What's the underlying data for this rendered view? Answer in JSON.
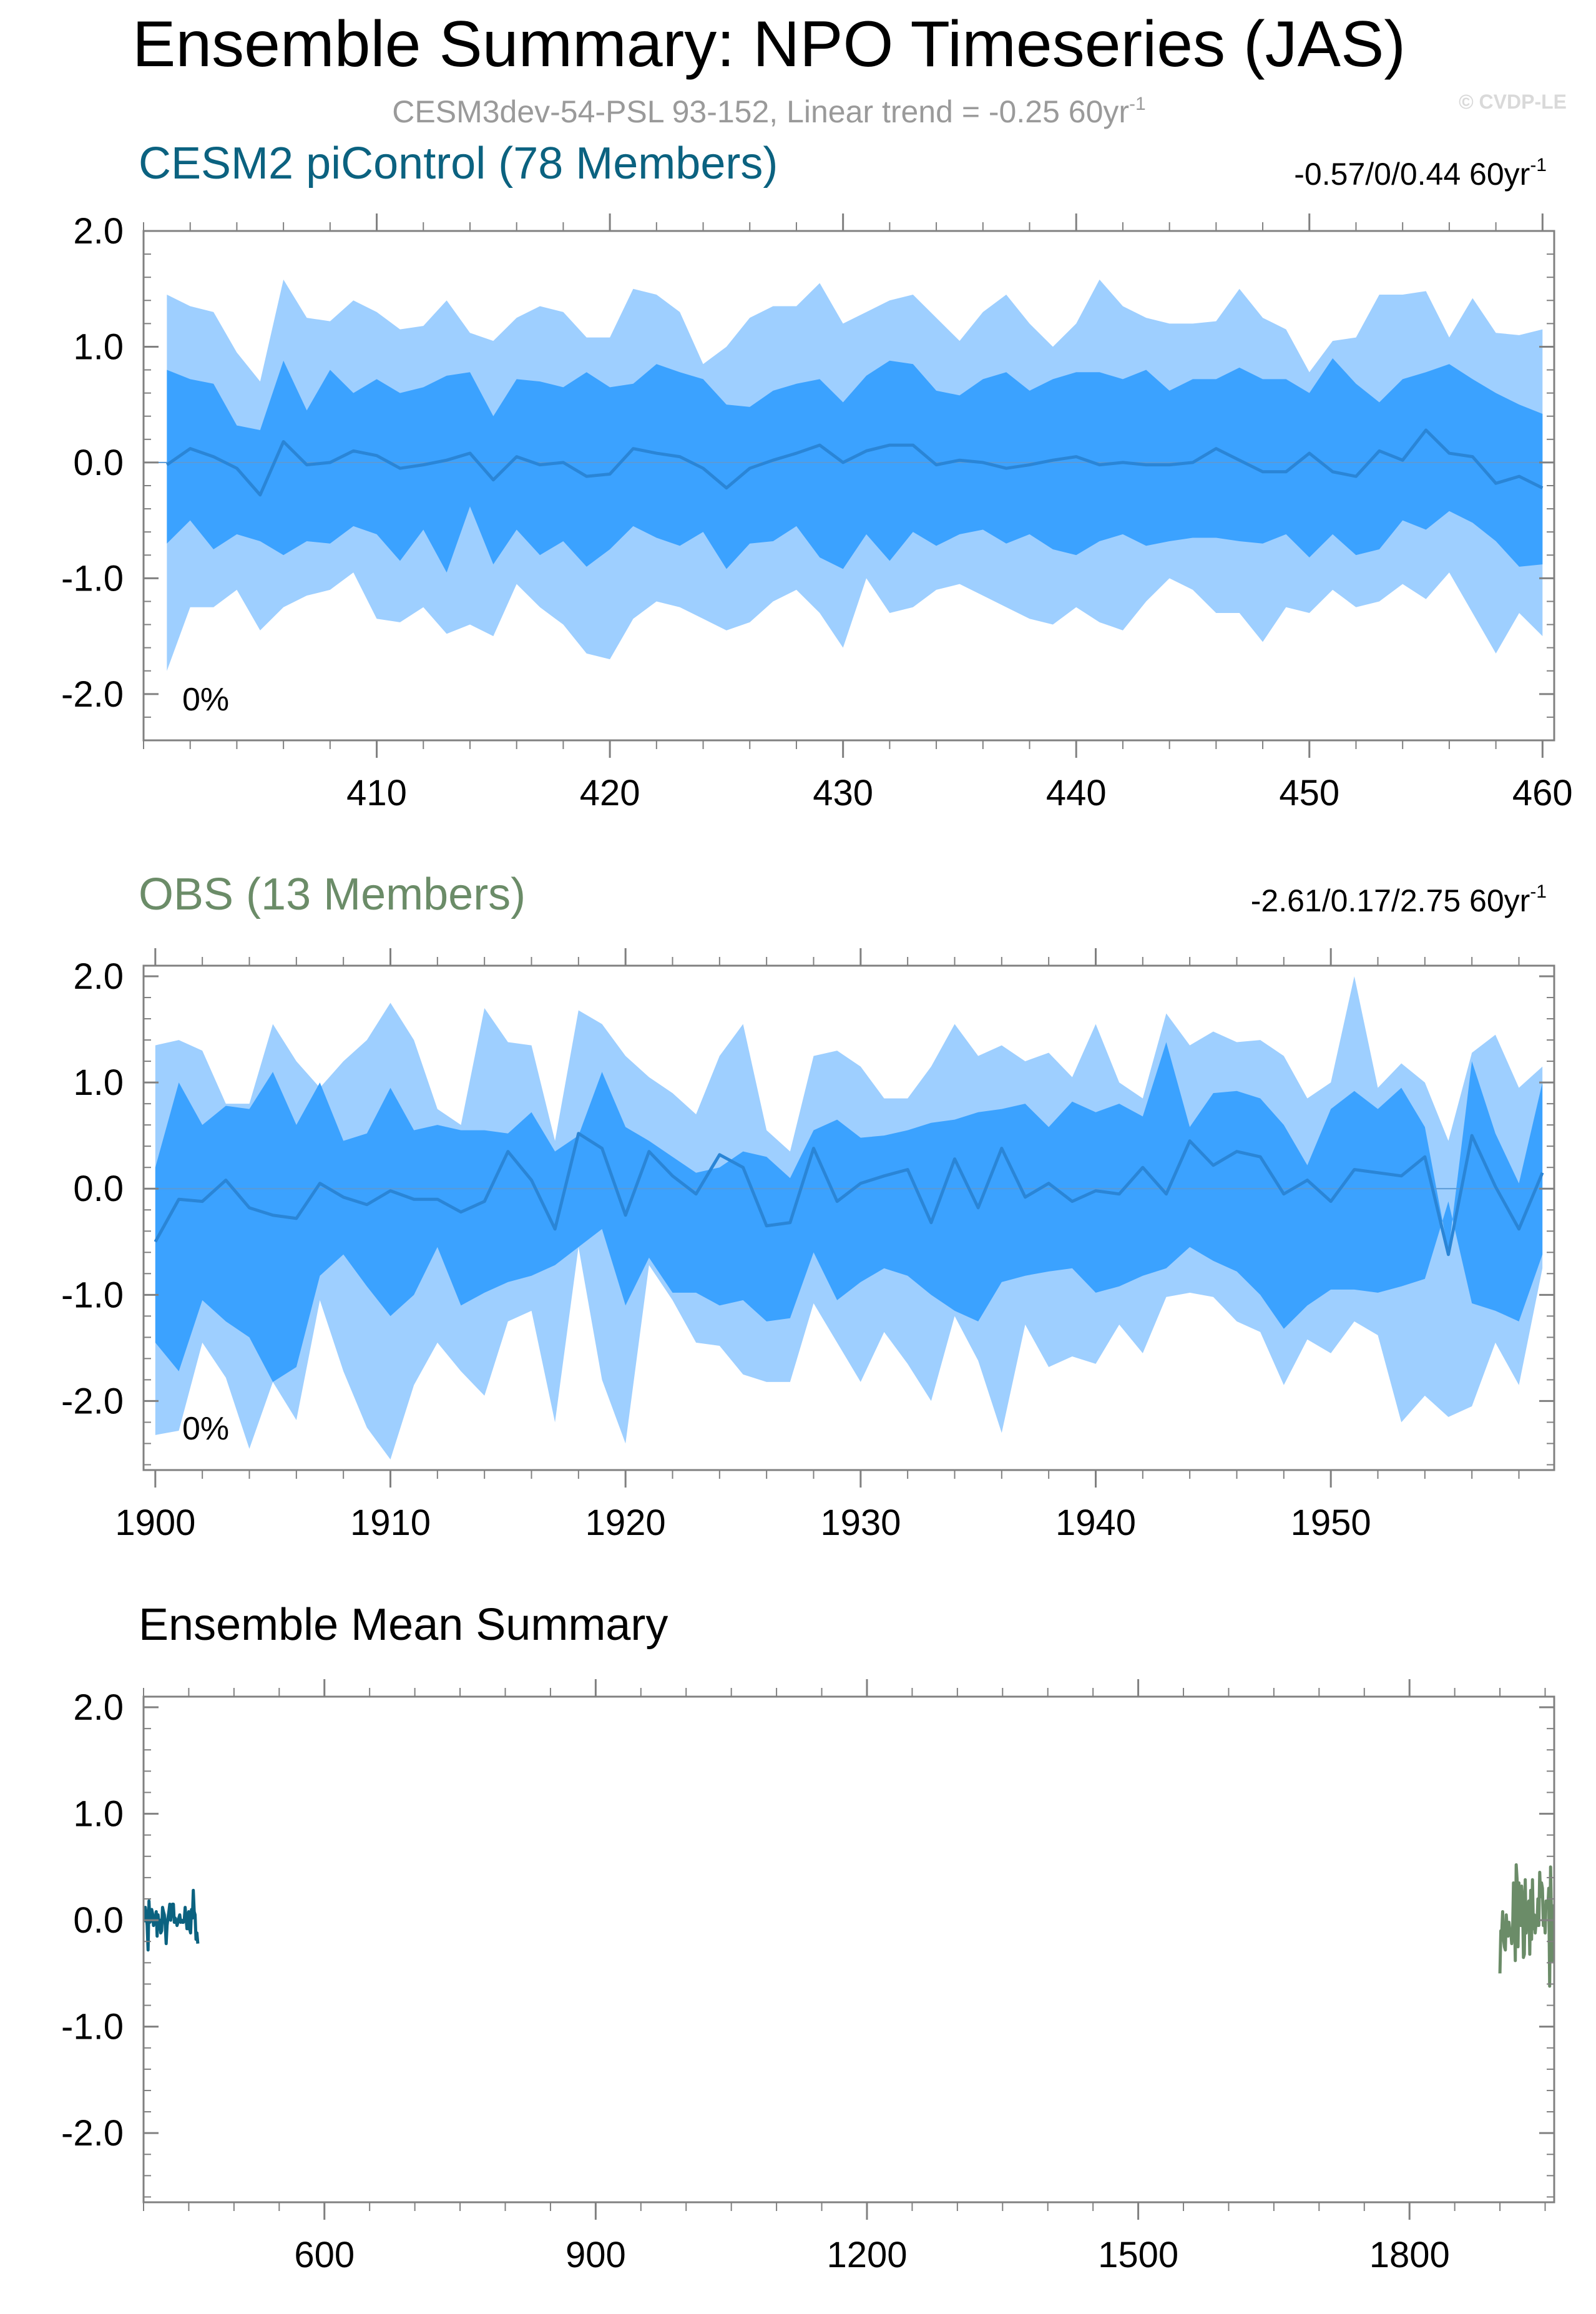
{
  "figure": {
    "title": "Ensemble Summary: NPO Timeseries (JAS)",
    "subtitle": "CESM3dev-54-PSL 93-152, Linear trend = -0.25 60yr",
    "subtitle_sup": "-1",
    "copyright": "© CVDP-LE"
  },
  "colors": {
    "outer_band": "#9ecfff",
    "inner_band": "#3ba2ff",
    "mean_line": "#2a85d6",
    "cesm_label": "#0b6280",
    "obs_label": "#6b8c68",
    "axis": "#808080"
  },
  "chart_data": [
    {
      "type": "area",
      "id": "cesm",
      "title": "CESM2 piControl (78 Members)",
      "trend_text": "-0.57/0/0.44 60yr",
      "trend_sup": "-1",
      "percent_label": "0%",
      "x": [
        401,
        402,
        403,
        404,
        405,
        406,
        407,
        408,
        409,
        410,
        411,
        412,
        413,
        414,
        415,
        416,
        417,
        418,
        419,
        420,
        421,
        422,
        423,
        424,
        425,
        426,
        427,
        428,
        429,
        430,
        431,
        432,
        433,
        434,
        435,
        436,
        437,
        438,
        439,
        440,
        441,
        442,
        443,
        444,
        445,
        446,
        447,
        448,
        449,
        450,
        451,
        452,
        453,
        454,
        455,
        456,
        457,
        458,
        459,
        460
      ],
      "xlim": [
        400,
        460.5
      ],
      "ylim": [
        -2.4,
        2.0
      ],
      "yticks": [
        2.0,
        1.0,
        0.0,
        -1.0,
        -2.0
      ],
      "ytick_labels": [
        "2.0",
        "1.0",
        "0.0",
        "-1.0",
        "-2.0"
      ],
      "xticks": [
        410,
        420,
        430,
        440,
        450,
        460
      ],
      "xtick_labels": [
        "410",
        "420",
        "430",
        "440",
        "450",
        "460"
      ],
      "outer_upper": [
        1.45,
        1.35,
        1.3,
        0.95,
        0.7,
        1.58,
        1.25,
        1.22,
        1.4,
        1.3,
        1.15,
        1.18,
        1.4,
        1.12,
        1.05,
        1.25,
        1.35,
        1.3,
        1.08,
        1.08,
        1.5,
        1.45,
        1.3,
        0.85,
        1.0,
        1.25,
        1.35,
        1.35,
        1.55,
        1.2,
        1.3,
        1.4,
        1.45,
        1.25,
        1.05,
        1.3,
        1.45,
        1.2,
        1.0,
        1.2,
        1.58,
        1.35,
        1.25,
        1.2,
        1.2,
        1.22,
        1.5,
        1.25,
        1.15,
        0.78,
        1.05,
        1.08,
        1.45,
        1.45,
        1.48,
        1.08,
        1.42,
        1.12,
        1.1,
        1.15
      ],
      "inner_upper": [
        0.8,
        0.72,
        0.68,
        0.32,
        0.28,
        0.88,
        0.45,
        0.8,
        0.6,
        0.72,
        0.6,
        0.65,
        0.75,
        0.78,
        0.4,
        0.72,
        0.7,
        0.65,
        0.78,
        0.65,
        0.68,
        0.85,
        0.78,
        0.72,
        0.5,
        0.48,
        0.62,
        0.68,
        0.72,
        0.52,
        0.75,
        0.88,
        0.85,
        0.62,
        0.58,
        0.72,
        0.78,
        0.62,
        0.72,
        0.78,
        0.78,
        0.72,
        0.8,
        0.62,
        0.72,
        0.72,
        0.82,
        0.72,
        0.72,
        0.6,
        0.9,
        0.68,
        0.52,
        0.72,
        0.78,
        0.85,
        0.72,
        0.6,
        0.5,
        0.42
      ],
      "mean": [
        -0.02,
        0.12,
        0.05,
        -0.05,
        -0.28,
        0.18,
        -0.02,
        0.0,
        0.1,
        0.06,
        -0.05,
        -0.02,
        0.02,
        0.08,
        -0.15,
        0.05,
        -0.02,
        0.0,
        -0.12,
        -0.1,
        0.12,
        0.08,
        0.05,
        -0.05,
        -0.22,
        -0.05,
        0.02,
        0.08,
        0.15,
        0.0,
        0.1,
        0.15,
        0.15,
        -0.02,
        0.02,
        0.0,
        -0.05,
        -0.02,
        0.02,
        0.05,
        -0.02,
        0.0,
        -0.02,
        -0.02,
        0.0,
        0.12,
        0.02,
        -0.08,
        -0.08,
        0.08,
        -0.08,
        -0.12,
        0.1,
        0.02,
        0.28,
        0.08,
        0.05,
        -0.18,
        -0.12,
        -0.22
      ],
      "inner_lower": [
        -0.7,
        -0.5,
        -0.75,
        -0.62,
        -0.68,
        -0.8,
        -0.68,
        -0.7,
        -0.55,
        -0.62,
        -0.85,
        -0.58,
        -0.95,
        -0.38,
        -0.88,
        -0.58,
        -0.8,
        -0.68,
        -0.9,
        -0.75,
        -0.55,
        -0.65,
        -0.72,
        -0.6,
        -0.92,
        -0.7,
        -0.68,
        -0.55,
        -0.82,
        -0.92,
        -0.62,
        -0.85,
        -0.6,
        -0.72,
        -0.62,
        -0.58,
        -0.7,
        -0.62,
        -0.75,
        -0.8,
        -0.68,
        -0.62,
        -0.72,
        -0.68,
        -0.65,
        -0.65,
        -0.68,
        -0.7,
        -0.62,
        -0.82,
        -0.62,
        -0.8,
        -0.75,
        -0.5,
        -0.58,
        -0.42,
        -0.52,
        -0.68,
        -0.9,
        -0.88
      ],
      "outer_lower": [
        -1.8,
        -1.25,
        -1.25,
        -1.1,
        -1.45,
        -1.25,
        -1.15,
        -1.1,
        -0.95,
        -1.35,
        -1.38,
        -1.25,
        -1.48,
        -1.4,
        -1.5,
        -1.05,
        -1.25,
        -1.4,
        -1.65,
        -1.7,
        -1.35,
        -1.2,
        -1.25,
        -1.35,
        -1.45,
        -1.38,
        -1.2,
        -1.1,
        -1.3,
        -1.6,
        -1.0,
        -1.3,
        -1.25,
        -1.1,
        -1.05,
        -1.15,
        -1.25,
        -1.35,
        -1.4,
        -1.25,
        -1.38,
        -1.45,
        -1.2,
        -1.0,
        -1.1,
        -1.3,
        -1.3,
        -1.55,
        -1.25,
        -1.3,
        -1.1,
        -1.25,
        -1.2,
        -1.05,
        -1.18,
        -0.95,
        -1.3,
        -1.65,
        -1.3,
        -1.5
      ]
    },
    {
      "type": "area",
      "id": "obs",
      "title": "OBS (13 Members)",
      "trend_text": "-2.61/0.17/2.75 60yr",
      "trend_sup": "-1",
      "percent_label": "0%",
      "x": [
        1900,
        1901,
        1902,
        1903,
        1904,
        1905,
        1906,
        1907,
        1908,
        1909,
        1910,
        1911,
        1912,
        1913,
        1914,
        1915,
        1916,
        1917,
        1918,
        1919,
        1920,
        1921,
        1922,
        1923,
        1924,
        1925,
        1926,
        1927,
        1928,
        1929,
        1930,
        1931,
        1932,
        1933,
        1934,
        1935,
        1936,
        1937,
        1938,
        1939,
        1940,
        1941,
        1942,
        1943,
        1944,
        1945,
        1946,
        1947,
        1948,
        1949,
        1950,
        1951,
        1952,
        1953,
        1954,
        1955,
        1956,
        1957,
        1958,
        1959
      ],
      "xlim": [
        1899.5,
        1959.5
      ],
      "ylim": [
        -2.65,
        2.1
      ],
      "yticks": [
        2.0,
        1.0,
        0.0,
        -1.0,
        -2.0
      ],
      "ytick_labels": [
        "2.0",
        "1.0",
        "0.0",
        "-1.0",
        "-2.0"
      ],
      "xticks": [
        1900,
        1910,
        1920,
        1930,
        1940,
        1950
      ],
      "xtick_labels": [
        "1900",
        "1910",
        "1920",
        "1930",
        "1940",
        "1950"
      ],
      "outer_upper": [
        1.35,
        1.4,
        1.3,
        0.8,
        0.8,
        1.55,
        1.2,
        0.95,
        1.2,
        1.4,
        1.75,
        1.4,
        0.75,
        0.6,
        1.7,
        1.38,
        1.35,
        0.45,
        1.68,
        1.55,
        1.25,
        1.05,
        0.9,
        0.7,
        1.25,
        1.55,
        0.55,
        0.35,
        1.25,
        1.3,
        1.15,
        0.85,
        0.85,
        1.15,
        1.55,
        1.25,
        1.35,
        1.2,
        1.28,
        1.05,
        1.55,
        1.0,
        0.85,
        1.65,
        1.35,
        1.48,
        1.38,
        1.4,
        1.25,
        0.85,
        1.0,
        2.0,
        0.95,
        1.18,
        1.0,
        0.45,
        1.28,
        1.45,
        0.95,
        1.15
      ],
      "inner_upper": [
        0.2,
        1.0,
        0.6,
        0.78,
        0.75,
        1.1,
        0.6,
        1.0,
        0.45,
        0.52,
        0.95,
        0.55,
        0.6,
        0.55,
        0.55,
        0.52,
        0.72,
        0.35,
        0.5,
        1.1,
        0.58,
        0.45,
        0.3,
        0.15,
        0.2,
        0.35,
        0.3,
        0.1,
        0.55,
        0.65,
        0.48,
        0.5,
        0.55,
        0.62,
        0.65,
        0.72,
        0.75,
        0.8,
        0.58,
        0.82,
        0.72,
        0.8,
        0.68,
        1.38,
        0.58,
        0.9,
        0.92,
        0.85,
        0.6,
        0.22,
        0.75,
        0.92,
        0.75,
        0.95,
        0.58,
        -0.6,
        1.2,
        0.52,
        0.05,
        1.0
      ],
      "mean": [
        -0.5,
        -0.1,
        -0.12,
        0.08,
        -0.18,
        -0.25,
        -0.28,
        0.05,
        -0.08,
        -0.15,
        -0.02,
        -0.1,
        -0.1,
        -0.22,
        -0.12,
        0.35,
        0.08,
        -0.38,
        0.52,
        0.38,
        -0.25,
        0.35,
        0.12,
        -0.05,
        0.32,
        0.2,
        -0.35,
        -0.32,
        0.38,
        -0.12,
        0.05,
        0.12,
        0.18,
        -0.32,
        0.28,
        -0.18,
        0.38,
        -0.08,
        0.05,
        -0.12,
        -0.02,
        -0.05,
        0.2,
        -0.05,
        0.45,
        0.22,
        0.35,
        0.3,
        -0.05,
        0.08,
        -0.12,
        0.18,
        0.15,
        0.12,
        0.3,
        -0.62,
        0.5,
        0.02,
        -0.38,
        0.15
      ],
      "inner_lower": [
        -1.45,
        -1.72,
        -1.05,
        -1.25,
        -1.4,
        -1.82,
        -1.68,
        -0.82,
        -0.62,
        -0.92,
        -1.2,
        -1.0,
        -0.55,
        -1.1,
        -0.98,
        -0.88,
        -0.82,
        -0.72,
        -0.55,
        -0.38,
        -1.1,
        -0.65,
        -0.98,
        -0.98,
        -1.1,
        -1.05,
        -1.25,
        -1.22,
        -0.6,
        -1.05,
        -0.88,
        -0.75,
        -0.82,
        -1.0,
        -1.15,
        -1.25,
        -0.88,
        -0.82,
        -0.78,
        -0.75,
        -0.98,
        -0.92,
        -0.82,
        -0.75,
        -0.55,
        -0.68,
        -0.78,
        -1.0,
        -1.32,
        -1.1,
        -0.95,
        -0.95,
        -0.98,
        -0.92,
        -0.85,
        -0.12,
        -1.08,
        -1.15,
        -1.25,
        -0.62
      ],
      "outer_lower": [
        -2.32,
        -2.28,
        -1.45,
        -1.78,
        -2.45,
        -1.82,
        -2.18,
        -1.05,
        -1.72,
        -2.25,
        -2.55,
        -1.85,
        -1.45,
        -1.72,
        -1.95,
        -1.25,
        -1.15,
        -2.2,
        -0.55,
        -1.8,
        -2.4,
        -0.72,
        -1.05,
        -1.45,
        -1.48,
        -1.75,
        -1.82,
        -1.82,
        -1.08,
        -1.45,
        -1.82,
        -1.35,
        -1.65,
        -2.0,
        -1.2,
        -1.62,
        -2.3,
        -1.28,
        -1.68,
        -1.58,
        -1.65,
        -1.28,
        -1.55,
        -1.02,
        -0.98,
        -1.02,
        -1.25,
        -1.35,
        -1.85,
        -1.42,
        -1.55,
        -1.25,
        -1.38,
        -2.2,
        -1.95,
        -2.15,
        -2.05,
        -1.45,
        -1.85,
        -0.75
      ]
    },
    {
      "type": "line",
      "id": "summary",
      "title": "Ensemble Mean Summary",
      "xlim": [
        400,
        1960
      ],
      "ylim": [
        -2.65,
        2.1
      ],
      "yticks": [
        2.0,
        1.0,
        0.0,
        -1.0,
        -2.0
      ],
      "ytick_labels": [
        "2.0",
        "1.0",
        "0.0",
        "-1.0",
        "-2.0"
      ],
      "xticks": [
        600,
        900,
        1200,
        1500,
        1800
      ],
      "xtick_labels": [
        "600",
        "900",
        "1200",
        "1500",
        "1800"
      ],
      "series": [
        {
          "name": "CESM2 piControl",
          "source": "cesm",
          "color_key": "cesm_label"
        },
        {
          "name": "OBS",
          "source": "obs",
          "color_key": "obs_label"
        }
      ]
    }
  ]
}
